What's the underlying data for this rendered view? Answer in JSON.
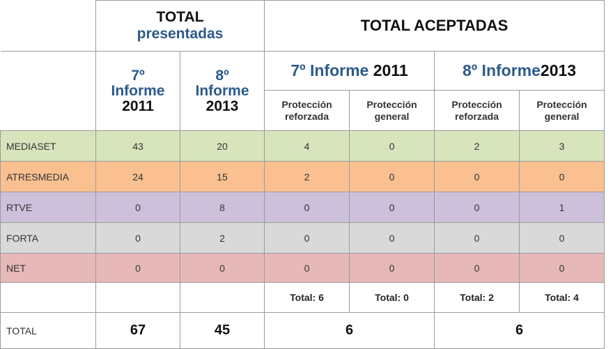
{
  "header": {
    "total_presentadas": {
      "line1": "TOTAL",
      "line2": "presentadas"
    },
    "total_aceptadas": "TOTAL ACEPTADAS",
    "pres_cols": [
      {
        "num": "7º",
        "word": "Informe",
        "year": "2011"
      },
      {
        "num": "8º",
        "word": "Informe",
        "year": "2013"
      }
    ],
    "acept_groups": [
      {
        "blue": "7º Informe ",
        "dark": "2011"
      },
      {
        "blue": "8º Informe",
        "dark": "2013"
      }
    ],
    "sub_cols": [
      {
        "line1": "Protección",
        "line2": "reforzada"
      },
      {
        "line1": "Protección",
        "line2": "general"
      },
      {
        "line1": "Protección",
        "line2": "reforzada"
      },
      {
        "line1": "Protección",
        "line2": "general"
      }
    ]
  },
  "rows": [
    {
      "label": "MEDIASET",
      "values": [
        "43",
        "20",
        "4",
        "0",
        "2",
        "3"
      ]
    },
    {
      "label": "ATRESMEDIA",
      "values": [
        "24",
        "15",
        "2",
        "0",
        "0",
        "0"
      ]
    },
    {
      "label": "RTVE",
      "values": [
        "0",
        "8",
        "0",
        "0",
        "0",
        "1"
      ]
    },
    {
      "label": "FORTA",
      "values": [
        "0",
        "2",
        "0",
        "0",
        "0",
        "0"
      ]
    },
    {
      "label": "NET",
      "values": [
        "0",
        "0",
        "0",
        "0",
        "0",
        "0"
      ]
    }
  ],
  "subtotals": [
    "Total: 6",
    "Total: 0",
    "Total: 2",
    "Total: 4"
  ],
  "total_row": {
    "label": "TOTAL",
    "values": [
      "67",
      "45",
      "6",
      "6"
    ]
  },
  "colors": {
    "mediaset": "#d8e4bc",
    "atresmedia": "#fac090",
    "rtve": "#ccc0da",
    "forta": "#d9d9d9",
    "net": "#e6b9b8",
    "header_blue": "#2c5a8c"
  }
}
